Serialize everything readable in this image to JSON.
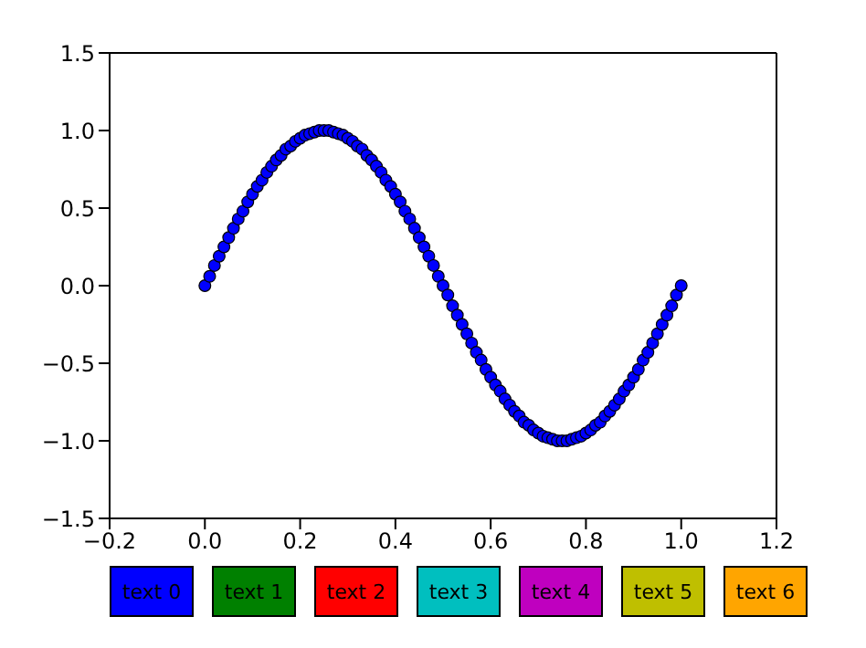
{
  "chart_data": {
    "type": "scatter",
    "x": [
      0,
      0.01,
      0.02,
      0.03,
      0.04,
      0.05,
      0.06,
      0.07,
      0.08,
      0.09,
      0.1,
      0.11,
      0.12,
      0.13,
      0.14,
      0.15,
      0.16,
      0.17,
      0.18,
      0.19,
      0.2,
      0.21,
      0.22,
      0.23,
      0.24,
      0.25,
      0.26,
      0.27,
      0.28,
      0.29,
      0.3,
      0.31,
      0.32,
      0.33,
      0.34,
      0.35,
      0.36,
      0.37,
      0.38,
      0.39,
      0.4,
      0.41,
      0.42,
      0.43,
      0.44,
      0.45,
      0.46,
      0.47,
      0.48,
      0.49,
      0.5,
      0.51,
      0.52,
      0.53,
      0.54,
      0.55,
      0.56,
      0.57,
      0.58,
      0.59,
      0.6,
      0.61,
      0.62,
      0.63,
      0.64,
      0.65,
      0.66,
      0.67,
      0.68,
      0.69,
      0.7,
      0.71,
      0.72,
      0.73,
      0.74,
      0.75,
      0.76,
      0.77,
      0.78,
      0.79,
      0.8,
      0.81,
      0.82,
      0.83,
      0.84,
      0.85,
      0.86,
      0.87,
      0.88,
      0.89,
      0.9,
      0.91,
      0.92,
      0.93,
      0.94,
      0.95,
      0.96,
      0.97,
      0.98,
      0.99,
      1
    ],
    "series": [
      {
        "color": "#0000ff",
        "values": [
          0,
          0.06,
          0.13,
          0.19,
          0.25,
          0.31,
          0.37,
          0.43,
          0.48,
          0.54,
          0.59,
          0.64,
          0.68,
          0.73,
          0.77,
          0.81,
          0.84,
          0.88,
          0.9,
          0.93,
          0.95,
          0.97,
          0.98,
          0.99,
          1,
          1,
          1,
          0.99,
          0.98,
          0.97,
          0.95,
          0.93,
          0.9,
          0.88,
          0.84,
          0.81,
          0.77,
          0.73,
          0.68,
          0.64,
          0.59,
          0.54,
          0.48,
          0.43,
          0.37,
          0.31,
          0.25,
          0.19,
          0.13,
          0.06,
          0,
          -0.06,
          -0.13,
          -0.19,
          -0.25,
          -0.31,
          -0.37,
          -0.43,
          -0.48,
          -0.54,
          -0.59,
          -0.64,
          -0.68,
          -0.73,
          -0.77,
          -0.81,
          -0.84,
          -0.88,
          -0.9,
          -0.93,
          -0.95,
          -0.97,
          -0.98,
          -0.99,
          -1,
          -1,
          -1,
          -0.99,
          -0.98,
          -0.97,
          -0.95,
          -0.93,
          -0.9,
          -0.88,
          -0.84,
          -0.81,
          -0.77,
          -0.73,
          -0.68,
          -0.64,
          -0.59,
          -0.54,
          -0.48,
          -0.43,
          -0.37,
          -0.31,
          -0.25,
          -0.19,
          -0.13,
          -0.06,
          0
        ]
      }
    ],
    "xlim": [
      -0.2,
      1.2
    ],
    "xticks": [
      {
        "value": -0.2,
        "label": "−0.2"
      },
      {
        "value": 0,
        "label": "0.0"
      },
      {
        "value": 0.2,
        "label": "0.2"
      },
      {
        "value": 0.4,
        "label": "0.4"
      },
      {
        "value": 0.6,
        "label": "0.6"
      },
      {
        "value": 0.8,
        "label": "0.8"
      },
      {
        "value": 1,
        "label": "1.0"
      },
      {
        "value": 1.2,
        "label": "1.2"
      }
    ],
    "ylim": [
      -1.5,
      1.5
    ],
    "yticks": [
      {
        "value": -1.5,
        "label": "−1.5"
      },
      {
        "value": -1,
        "label": "−1.0"
      },
      {
        "value": -0.5,
        "label": "−0.5"
      },
      {
        "value": 0,
        "label": "0.0"
      },
      {
        "value": 0.5,
        "label": "0.5"
      },
      {
        "value": 1,
        "label": "1.0"
      },
      {
        "value": 1.5,
        "label": "1.5"
      }
    ],
    "marker": "circle",
    "legend": false,
    "annotations": [
      "text 0",
      "text 1",
      "text 2",
      "text 3",
      "text 4",
      "text 5",
      "text 6"
    ]
  }
}
